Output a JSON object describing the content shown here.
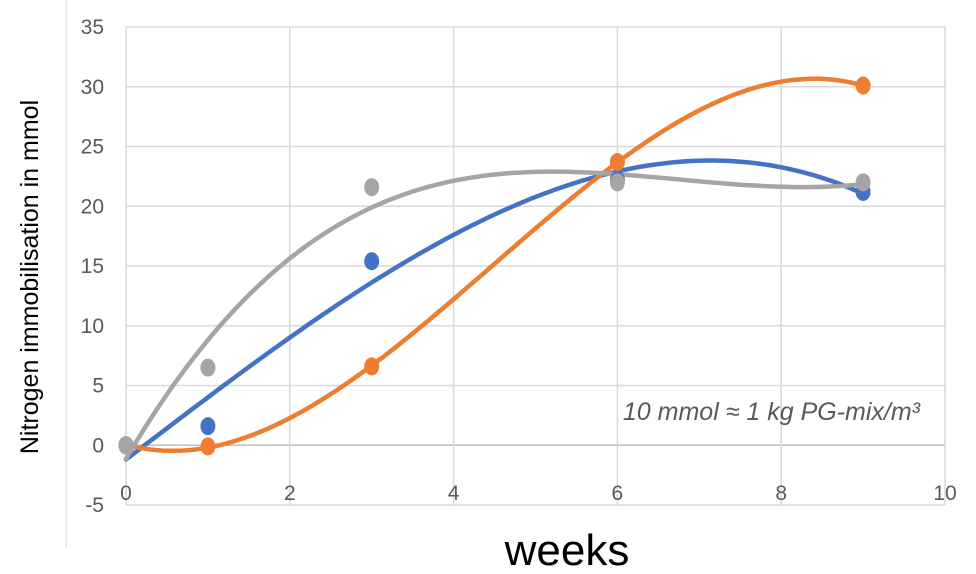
{
  "chart_data": {
    "type": "scatter",
    "title": "",
    "xlabel": "weeks",
    "ylabel": "Nitrogen immobilisation in mmol",
    "xlim": [
      0,
      10
    ],
    "ylim": [
      -5,
      35
    ],
    "xticks": [
      0,
      2,
      4,
      6,
      8,
      10
    ],
    "yticks": [
      -5,
      0,
      5,
      10,
      15,
      20,
      25,
      30,
      35
    ],
    "grid": true,
    "legend": "none",
    "annotation": "10 mmol ≈ 1 kg PG-mix/m³",
    "series": [
      {
        "color": "#4472c4",
        "points": [
          [
            0,
            0
          ],
          [
            1,
            1.6
          ],
          [
            3,
            15.4
          ],
          [
            6,
            22.2
          ],
          [
            9,
            21.2
          ]
        ],
        "trendline": "polynomial"
      },
      {
        "color": "#ed7d31",
        "points": [
          [
            0,
            0
          ],
          [
            1,
            -0.1
          ],
          [
            3,
            6.6
          ],
          [
            6,
            23.7
          ],
          [
            9,
            30.1
          ]
        ],
        "trendline": "polynomial"
      },
      {
        "color": "#a5a5a5",
        "points": [
          [
            0,
            0
          ],
          [
            1,
            6.5
          ],
          [
            3,
            21.6
          ],
          [
            6,
            22.0
          ],
          [
            9,
            22.0
          ]
        ],
        "trendline": "polynomial"
      }
    ]
  }
}
